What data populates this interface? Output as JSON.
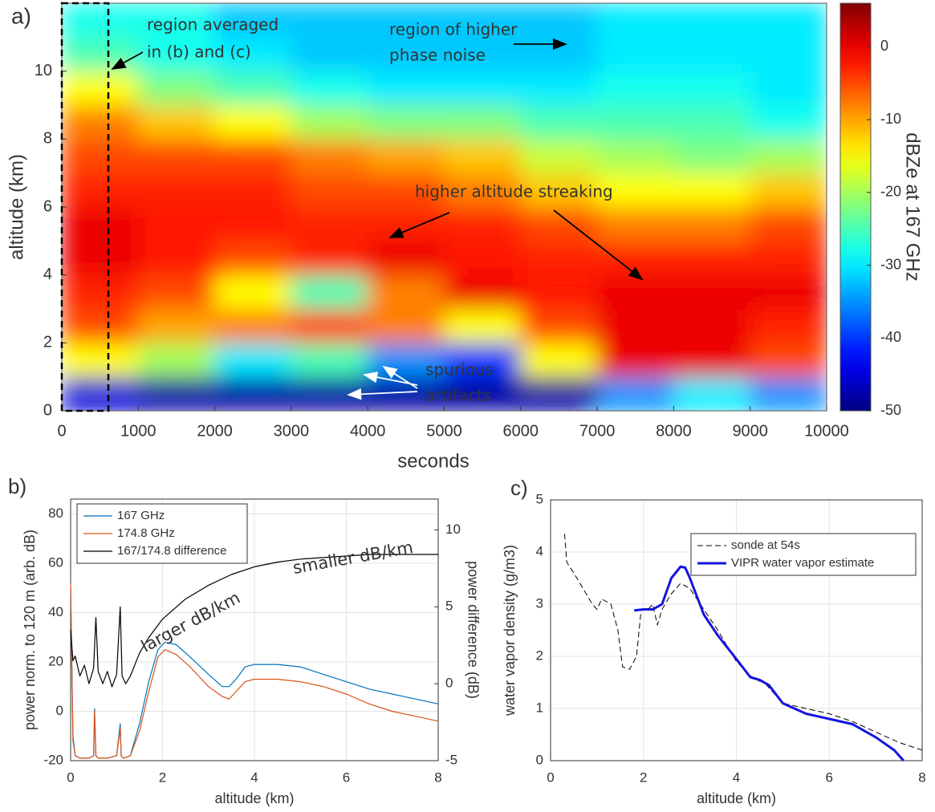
{
  "chart_data": [
    {
      "type": "heatmap",
      "panel_label": "a)",
      "xlabel": "seconds",
      "ylabel": "altitude (km)",
      "colorbar_label": "dBZe at 167 GHz",
      "colormap": "jet",
      "x": [
        500,
        1500,
        2500,
        3500,
        4500,
        5500,
        6500,
        7500,
        8500,
        9500
      ],
      "y": [
        0.5,
        1.5,
        2.5,
        3.5,
        4.5,
        5.5,
        6.5,
        7.5,
        8.5,
        9.5,
        10.5,
        11.5
      ],
      "z": [
        [
          -45,
          -48,
          -48,
          -48,
          -48,
          -48,
          -48,
          -35,
          -30,
          -35
        ],
        [
          -15,
          -20,
          -30,
          -25,
          -35,
          -40,
          -15,
          0,
          0,
          -5
        ],
        [
          -5,
          -10,
          -8,
          -5,
          -8,
          -15,
          -5,
          0,
          0,
          -3
        ],
        [
          -3,
          -5,
          -15,
          -25,
          -8,
          0,
          -2,
          0,
          0,
          0
        ],
        [
          0,
          -2,
          -5,
          -3,
          0,
          -2,
          -3,
          -3,
          -3,
          -3
        ],
        [
          0,
          -2,
          -2,
          -3,
          -3,
          -3,
          -5,
          -8,
          -8,
          -5
        ],
        [
          -3,
          -3,
          -3,
          -5,
          -5,
          -8,
          -12,
          -15,
          -15,
          -12
        ],
        [
          -5,
          -5,
          -5,
          -8,
          -10,
          -12,
          -18,
          -20,
          -22,
          -20
        ],
        [
          -8,
          -12,
          -15,
          -20,
          -22,
          -22,
          -25,
          -25,
          -25,
          -28
        ],
        [
          -15,
          -22,
          -25,
          -28,
          -30,
          -30,
          -30,
          -28,
          -28,
          -30
        ],
        [
          -25,
          -28,
          -30,
          -32,
          -32,
          -32,
          -32,
          -30,
          -30,
          -30
        ],
        [
          -28,
          -28,
          -32,
          -32,
          -32,
          -32,
          -32,
          -30,
          -30,
          -30
        ]
      ],
      "xlim": [
        0,
        10000
      ],
      "ylim": [
        0,
        12
      ],
      "xticks": [
        0,
        1000,
        2000,
        3000,
        4000,
        5000,
        6000,
        7000,
        8000,
        9000,
        10000
      ],
      "yticks": [
        0,
        2,
        4,
        6,
        8,
        10
      ],
      "clim": [
        -50,
        6
      ],
      "cticks": [
        -50,
        -40,
        -30,
        -20,
        -10,
        0
      ],
      "annotations": [
        "region averaged",
        "in (b) and (c)",
        "region of higher",
        "phase noise",
        "higher altitude streaking",
        "spurious",
        "artifacts"
      ]
    },
    {
      "type": "line",
      "panel_label": "b)",
      "xlabel": "altitude (km)",
      "ylabel": "power norm. to 120 m (arb. dB)",
      "y2label": "power difference (dB)",
      "series": [
        {
          "name": "167 GHz",
          "color": "#0072bd",
          "x": [
            0,
            0.05,
            0.1,
            0.2,
            0.4,
            0.5,
            0.52,
            0.55,
            0.6,
            0.8,
            1.0,
            1.08,
            1.1,
            1.15,
            1.3,
            1.5,
            1.7,
            1.9,
            2.05,
            2.3,
            2.6,
            3.0,
            3.3,
            3.45,
            3.6,
            3.8,
            4.0,
            4.5,
            5.0,
            5.5,
            6.0,
            6.5,
            7.0,
            7.5,
            8.0
          ],
          "values": [
            50,
            -10,
            -18,
            -19,
            -19,
            -18,
            1,
            -18,
            -19,
            -19,
            -18,
            -5,
            -18,
            -19,
            -18,
            -5,
            12,
            25,
            28,
            27,
            22,
            15,
            10,
            10,
            13,
            18,
            19,
            19,
            18,
            15,
            12,
            9,
            7,
            5,
            3
          ]
        },
        {
          "name": "174.8 GHz",
          "color": "#d95319",
          "x": [
            0,
            0.05,
            0.1,
            0.2,
            0.4,
            0.5,
            0.52,
            0.55,
            0.6,
            0.8,
            1.0,
            1.08,
            1.1,
            1.15,
            1.3,
            1.5,
            1.7,
            1.9,
            2.05,
            2.3,
            2.6,
            3.0,
            3.3,
            3.45,
            3.6,
            3.8,
            4.0,
            4.5,
            5.0,
            5.5,
            6.0,
            6.5,
            7.0,
            7.5,
            8.0
          ],
          "values": [
            52,
            -12,
            -18,
            -19,
            -19,
            -18,
            0,
            -18,
            -19,
            -19,
            -18,
            -7,
            -18,
            -19,
            -18,
            -8,
            8,
            22,
            25,
            23,
            18,
            10,
            6,
            5,
            8,
            12,
            13,
            13,
            12,
            10,
            7,
            3,
            0,
            -2,
            -4
          ]
        },
        {
          "name": "167/174.8 difference",
          "color": "#000000",
          "axis": "y2",
          "x": [
            0,
            0.05,
            0.1,
            0.2,
            0.3,
            0.4,
            0.5,
            0.55,
            0.6,
            0.7,
            0.8,
            0.9,
            1.0,
            1.08,
            1.12,
            1.2,
            1.3,
            1.5,
            1.7,
            2.0,
            2.5,
            3.0,
            3.5,
            4.0,
            4.5,
            5.0,
            5.5,
            6.0,
            6.5,
            7.0,
            7.5,
            8.0
          ],
          "values": [
            3.5,
            1.5,
            1.8,
            0.5,
            1.2,
            0,
            1,
            4.3,
            0.8,
            0,
            0.8,
            -0.2,
            0.6,
            5,
            0.5,
            0,
            0.5,
            2,
            3,
            4.2,
            5.5,
            6.4,
            7.1,
            7.6,
            7.9,
            8.1,
            8.2,
            8.3,
            8.4,
            8.4,
            8.4,
            8.4
          ]
        }
      ],
      "xlim": [
        0,
        8
      ],
      "ylim": [
        -20,
        86
      ],
      "y2lim": [
        -5,
        12
      ],
      "xticks": [
        0,
        2,
        4,
        6,
        8
      ],
      "yticks": [
        -20,
        0,
        20,
        40,
        60,
        80
      ],
      "y2ticks": [
        -5,
        0,
        5,
        10
      ],
      "grid": true,
      "legend": "upper left",
      "annotations": [
        "larger dB/km",
        "smaller dB/km"
      ]
    },
    {
      "type": "line",
      "panel_label": "c)",
      "xlabel": "altitude (km)",
      "ylabel": "water vapor density (g/m3)",
      "series": [
        {
          "name": "sonde at 54s",
          "color": "#000000",
          "linestyle": "dashed",
          "linewidth": 1,
          "x": [
            0.3,
            0.35,
            0.5,
            0.7,
            0.9,
            1.0,
            1.1,
            1.3,
            1.45,
            1.55,
            1.7,
            1.85,
            1.95,
            2.1,
            2.2,
            2.3,
            2.4,
            2.6,
            2.8,
            3.0,
            3.3,
            3.6,
            4.0,
            4.4,
            4.6,
            5.0,
            5.5,
            6.0,
            6.5,
            7.0,
            7.5,
            8.0
          ],
          "values": [
            4.35,
            3.8,
            3.6,
            3.3,
            3.0,
            2.9,
            3.1,
            3.0,
            2.5,
            1.8,
            1.75,
            2.0,
            2.9,
            2.9,
            3.0,
            2.6,
            2.9,
            3.2,
            3.4,
            3.3,
            2.9,
            2.5,
            1.9,
            1.55,
            1.5,
            1.1,
            1.0,
            0.9,
            0.75,
            0.55,
            0.35,
            0.2
          ]
        },
        {
          "name": "VIPR water vapor estimate",
          "color": "#1414e0",
          "linestyle": "solid",
          "linewidth": 3,
          "x": [
            1.8,
            2.0,
            2.2,
            2.4,
            2.6,
            2.8,
            2.9,
            3.0,
            3.3,
            3.6,
            4.0,
            4.3,
            4.5,
            4.7,
            5.0,
            5.5,
            6.0,
            6.5,
            7.0,
            7.4,
            7.6
          ],
          "values": [
            2.88,
            2.9,
            2.9,
            3.0,
            3.5,
            3.72,
            3.7,
            3.5,
            2.8,
            2.4,
            1.95,
            1.6,
            1.55,
            1.45,
            1.1,
            0.9,
            0.8,
            0.7,
            0.45,
            0.2,
            0.0
          ]
        }
      ],
      "xlim": [
        0,
        8
      ],
      "ylim": [
        0,
        5
      ],
      "xticks": [
        0,
        2,
        4,
        6,
        8
      ],
      "yticks": [
        0,
        1,
        2,
        3,
        4,
        5
      ],
      "grid": true,
      "legend": "upper right"
    }
  ]
}
